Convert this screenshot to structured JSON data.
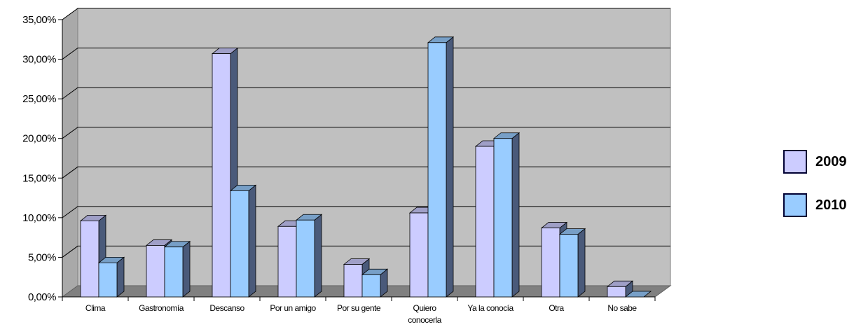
{
  "chart_data": {
    "type": "bar",
    "categories": [
      "Clima",
      "Gastronomía",
      "Descanso",
      "Por un amigo",
      "Por su gente",
      "Quiero conocerla",
      "Ya la conocía",
      "Otra",
      "No sabe"
    ],
    "category_lines": [
      [
        "Clima"
      ],
      [
        "Gastronomía"
      ],
      [
        "Descanso"
      ],
      [
        "Por un amigo"
      ],
      [
        "Por su gente"
      ],
      [
        "Quiero",
        "conocerla"
      ],
      [
        "Ya la conocía"
      ],
      [
        "Otra"
      ],
      [
        "No sabe"
      ]
    ],
    "series": [
      {
        "name": "2009",
        "color": "#CCCCFF",
        "values": [
          9.6,
          6.5,
          30.7,
          8.9,
          4.1,
          10.6,
          19.0,
          8.7,
          1.3
        ]
      },
      {
        "name": "2010",
        "color": "#99CCFF",
        "values": [
          4.3,
          6.3,
          13.4,
          9.7,
          2.8,
          32.1,
          20.0,
          7.9,
          0.0
        ]
      }
    ],
    "yticks": [
      "0,00%",
      "5,00%",
      "10,00%",
      "15,00%",
      "20,00%",
      "25,00%",
      "30,00%",
      "35,00%"
    ],
    "ylim": [
      0,
      35
    ],
    "legend_position": "right",
    "grid": true,
    "colors": {
      "wall": "#C0C0C0",
      "floor": "#808080",
      "grid": "#000000"
    }
  }
}
